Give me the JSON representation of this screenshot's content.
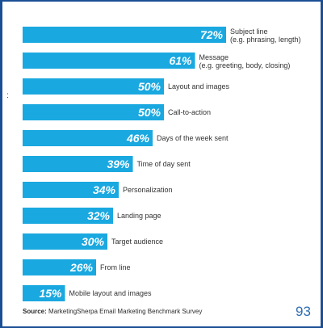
{
  "chart_data": {
    "type": "bar",
    "orientation": "horizontal",
    "color": "#1aa8e0",
    "label_color": "#333333",
    "categories": [
      [
        "Subject line",
        "(e.g. phrasing, length)"
      ],
      [
        "Message",
        "(e.g. greeting, body, closing)"
      ],
      [
        "Layout and images"
      ],
      [
        "Call-to-action"
      ],
      [
        "Days of the week sent"
      ],
      [
        "Time of day sent"
      ],
      [
        "Personalization"
      ],
      [
        "Landing page"
      ],
      [
        "Target audience"
      ],
      [
        "From line"
      ],
      [
        "Mobile layout and images"
      ]
    ],
    "values": [
      72,
      61,
      50,
      50,
      46,
      39,
      34,
      32,
      30,
      26,
      15
    ],
    "value_suffix": "%",
    "xlim": [
      0,
      100
    ]
  },
  "source": {
    "label": "Source:",
    "text": "MarketingSherpa Email Marketing Benchmark Survey"
  },
  "page_number": "93",
  "side_mark": ":"
}
